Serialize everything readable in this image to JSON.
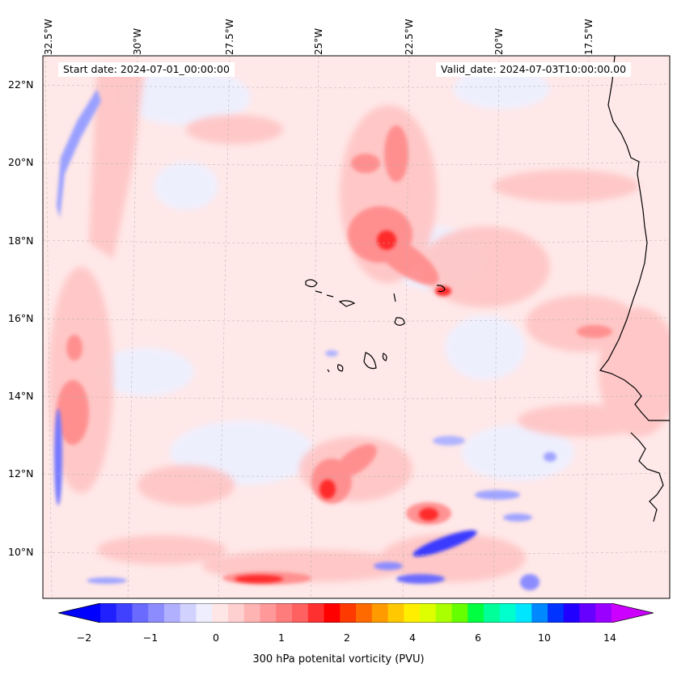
{
  "map": {
    "longitude_labels": [
      "32.5°W",
      "30°W",
      "27.5°W",
      "25°W",
      "22.5°W",
      "20°W",
      "17.5°W"
    ],
    "latitude_labels": [
      "22°N",
      "20°N",
      "18°N",
      "16°N",
      "14°N",
      "12°N",
      "10°N"
    ],
    "start_date": "Start date: 2024-07-01_00:00:00",
    "valid_date": "Valid_date: 2024-07-03T10:00:00.00",
    "colors": {
      "negative": "#0000ff",
      "near_zero": "#ffe6e6",
      "positive": "#ff0000",
      "coastline": "#000000"
    }
  },
  "colorbar": {
    "title": "300 hPa potenital vorticity (PVU)",
    "tick_labels": [
      "−2",
      "−1",
      "0",
      "1",
      "2",
      "4",
      "6",
      "10",
      "14"
    ],
    "colors": [
      "#0000ff",
      "#2020ff",
      "#4040ff",
      "#6a6aff",
      "#8c8cff",
      "#b0b0ff",
      "#d2d2ff",
      "#eeeeff",
      "#ffe6e6",
      "#ffd0d0",
      "#ffb4b4",
      "#ff9898",
      "#ff7c7c",
      "#ff6060",
      "#ff3030",
      "#ff0000",
      "#ff3a00",
      "#ff6a00",
      "#ff9a00",
      "#ffc800",
      "#ffee00",
      "#ddff00",
      "#aaff00",
      "#66ff00",
      "#00ff40",
      "#00ff99",
      "#00ffcc",
      "#00e6ff",
      "#0088ff",
      "#0033ff",
      "#2200ff",
      "#6600ff",
      "#9900ff",
      "#cc00ff"
    ]
  }
}
